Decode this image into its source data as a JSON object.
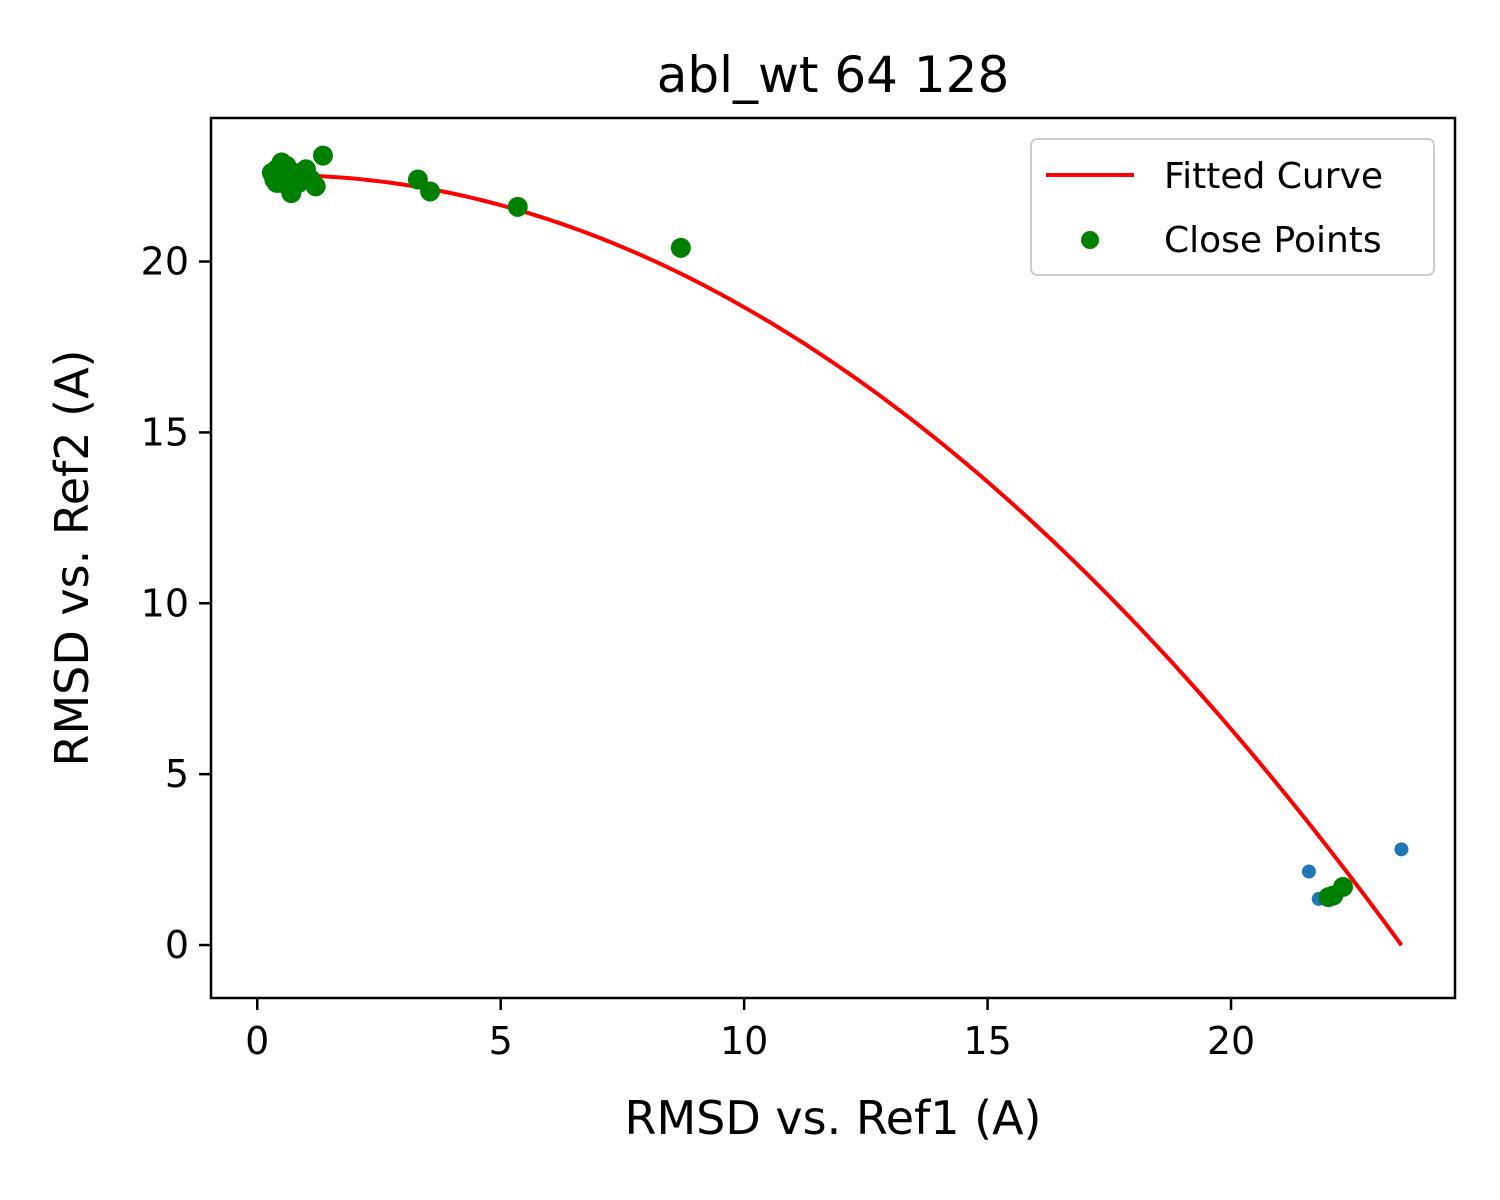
{
  "chart_data": {
    "type": "scatter",
    "title": "abl_wt 64 128",
    "xlabel": "RMSD vs. Ref1 (A)",
    "ylabel": "RMSD vs. Ref2 (A)",
    "xlim": [
      -0.95,
      24.6
    ],
    "ylim": [
      -1.55,
      24.2
    ],
    "xticks": [
      0,
      5,
      10,
      15,
      20
    ],
    "yticks": [
      0,
      5,
      10,
      15,
      20
    ],
    "grid": false,
    "legend_position": "top-right",
    "legend": {
      "line_label": "Fitted Curve",
      "points_label": "Close Points"
    },
    "colors": {
      "fitted_curve": "#ff0000",
      "close_points": "#008000",
      "other_points": "#1f77b4"
    },
    "fitted_curve": {
      "x_range": [
        0.2,
        23.5
      ],
      "y_at_start": 22.6,
      "y_at_end": -0.45,
      "samples": [
        [
          0.2,
          22.6
        ],
        [
          5.3,
          21.5
        ],
        [
          8.7,
          19.5
        ],
        [
          15.0,
          13.5
        ],
        [
          20.0,
          6.6
        ],
        [
          22.3,
          2.6
        ],
        [
          23.5,
          -0.45
        ]
      ]
    },
    "series": [
      {
        "name": "Close Points",
        "points": [
          [
            0.3,
            22.6
          ],
          [
            0.35,
            22.4
          ],
          [
            0.4,
            22.7
          ],
          [
            0.45,
            22.5
          ],
          [
            0.5,
            22.3
          ],
          [
            0.55,
            22.6
          ],
          [
            0.6,
            22.8
          ],
          [
            0.65,
            22.4
          ],
          [
            0.7,
            22.2
          ],
          [
            0.75,
            22.6
          ],
          [
            0.8,
            22.4
          ],
          [
            0.85,
            22.3
          ],
          [
            0.9,
            22.5
          ],
          [
            1.0,
            22.7
          ],
          [
            1.1,
            22.4
          ],
          [
            1.2,
            22.2
          ],
          [
            1.35,
            23.1
          ],
          [
            0.5,
            22.9
          ],
          [
            0.4,
            22.3
          ],
          [
            0.7,
            22.0
          ],
          [
            3.3,
            22.4
          ],
          [
            3.55,
            22.05
          ],
          [
            5.35,
            21.6
          ],
          [
            8.7,
            20.4
          ],
          [
            22.0,
            1.4
          ],
          [
            22.1,
            1.45
          ],
          [
            22.3,
            1.7
          ]
        ]
      },
      {
        "points": [
          [
            21.6,
            2.15
          ],
          [
            21.8,
            1.35
          ],
          [
            23.5,
            2.8
          ]
        ]
      }
    ]
  }
}
